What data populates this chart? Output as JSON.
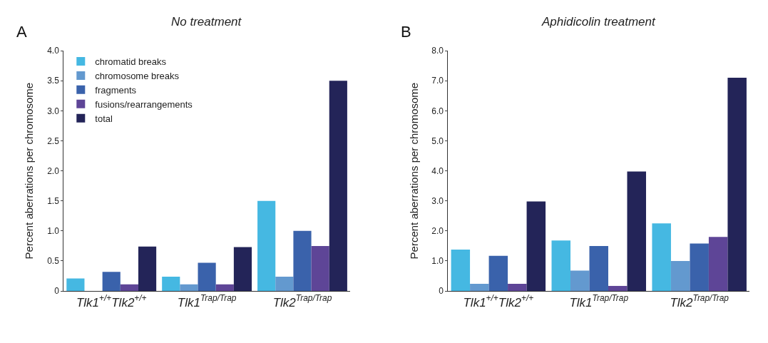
{
  "chart_data": [
    {
      "type": "bar",
      "title": "No treatment",
      "annotations": [
        "A"
      ],
      "ylabel": "Percent aberrations per chromosome",
      "categories": [
        "Tlk1$^{+/+}$Tlk2$^{+/+}$",
        "Tlk1$^{Trap/Trap}$",
        "Tlk2$^{Trap/Trap}$"
      ],
      "series": [
        {
          "name": "chromatid breaks",
          "color": "#45b8e2",
          "values": [
            0.21,
            0.24,
            1.5
          ]
        },
        {
          "name": "chromosome breaks",
          "color": "#6399cf",
          "values": [
            0,
            0.11,
            0.24
          ]
        },
        {
          "name": "fragments",
          "color": "#3a62ab",
          "values": [
            0.32,
            0.47,
            1.0
          ]
        },
        {
          "name": "fusions/rearrangements",
          "color": "#5e4597",
          "values": [
            0.11,
            0.11,
            0.75
          ]
        },
        {
          "name": "total",
          "color": "#232458",
          "values": [
            0.74,
            0.73,
            3.5
          ]
        }
      ],
      "ylim": [
        0,
        4.0
      ],
      "yticks": [
        0,
        0.5,
        {
          "value": 1.0,
          "label": "1.0"
        },
        1.5,
        {
          "value": 2.0,
          "label": "2.0"
        },
        2.5,
        {
          "value": 3.0,
          "label": "3.0"
        },
        3.5,
        {
          "value": 4.0,
          "label": "4.0"
        }
      ],
      "legend": "top left"
    },
    {
      "type": "bar",
      "title": "Aphidicolin treatment",
      "annotations": [
        "B"
      ],
      "ylabel": "Percent aberrations per chromosome",
      "categories": [
        "Tlk1$^{+/+}$Tlk2$^{+/+}$",
        "Tlk1$^{Trap/Trap}$",
        "Tlk2$^{Trap/Trap}$"
      ],
      "series": [
        {
          "color": "#45b8e2",
          "values": [
            1.38,
            1.68,
            2.25
          ]
        },
        {
          "color": "#6399cf",
          "values": [
            0.24,
            0.68,
            1.0
          ]
        },
        {
          "color": "#3a62ab",
          "values": [
            1.17,
            1.5,
            1.58
          ]
        },
        {
          "color": "#5e4597",
          "values": [
            0.24,
            0.17,
            1.8
          ]
        },
        {
          "color": "#232458",
          "values": [
            2.98,
            3.98,
            7.1
          ]
        }
      ],
      "ylim": [
        0,
        8.0
      ],
      "yticks": [
        0,
        {
          "value": 1.0,
          "label": "1.0"
        },
        {
          "value": 2.0,
          "label": "2.0"
        },
        {
          "value": 3.0,
          "label": "3.0"
        },
        {
          "value": 4.0,
          "label": "4.0"
        },
        {
          "value": 5.0,
          "label": "5.0"
        },
        {
          "value": 6.0,
          "label": "6.0"
        },
        {
          "value": 7.0,
          "label": "7.0"
        },
        {
          "value": 8.0,
          "label": "8.0"
        }
      ],
      "legend": false
    }
  ]
}
